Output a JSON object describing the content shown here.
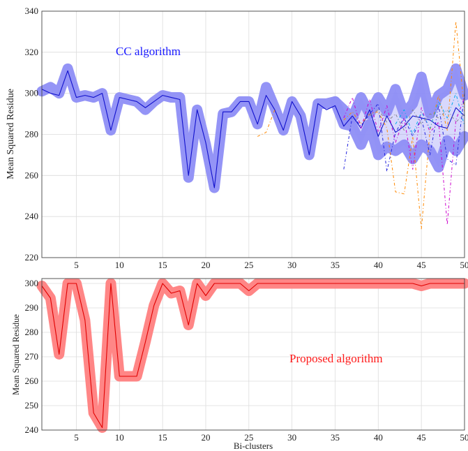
{
  "chart_data": [
    {
      "type": "line",
      "ylabel": "Mean Squared Residue",
      "xlabel": "",
      "xlim": [
        1,
        50
      ],
      "ylim": [
        220,
        340
      ],
      "xticks": [
        5,
        10,
        15,
        20,
        25,
        30,
        35,
        40,
        45,
        50
      ],
      "yticks": [
        220,
        240,
        260,
        280,
        300,
        320,
        340
      ],
      "grid": true,
      "annotation": "CC algorithm",
      "annotation_color": "#1a1aff",
      "band_color": "#8e8ef6",
      "x": [
        1,
        2,
        3,
        4,
        5,
        6,
        7,
        8,
        9,
        10,
        11,
        12,
        13,
        14,
        15,
        16,
        17,
        18,
        19,
        20,
        21,
        22,
        23,
        24,
        25,
        26,
        27,
        28,
        29,
        30,
        31,
        32,
        33,
        34,
        35,
        36,
        37,
        38,
        39,
        40,
        41,
        42,
        43,
        44,
        45,
        46,
        47,
        48,
        49,
        50
      ],
      "envelope_upper": [
        301,
        303,
        300,
        312,
        298,
        299,
        298,
        300,
        282,
        298,
        297,
        296,
        292,
        296,
        299,
        298,
        298,
        259,
        292,
        275,
        254,
        290,
        291,
        296,
        296,
        285,
        303,
        293,
        282,
        296,
        289,
        270,
        295,
        295,
        296,
        292,
        288,
        298,
        290,
        298,
        291,
        302,
        290,
        295,
        308,
        290,
        299,
        302,
        312,
        299
      ],
      "envelope_lower": [
        301,
        303,
        300,
        312,
        298,
        299,
        298,
        300,
        282,
        298,
        297,
        296,
        292,
        296,
        299,
        298,
        298,
        259,
        292,
        275,
        254,
        290,
        291,
        296,
        296,
        285,
        303,
        293,
        282,
        296,
        289,
        270,
        295,
        295,
        296,
        285,
        284,
        275,
        285,
        270,
        274,
        272,
        275,
        268,
        275,
        272,
        264,
        277,
        272,
        279
      ],
      "series": [
        {
          "name": "",
          "color": "#1111cc",
          "dash": "",
          "width": 1.1,
          "values": [
            302,
            300,
            299,
            311,
            298,
            299,
            298,
            300,
            282,
            298,
            297,
            296,
            293,
            296,
            299,
            298,
            297,
            260,
            292,
            276,
            254,
            291,
            291,
            296,
            296,
            285,
            299,
            292,
            282,
            296,
            289,
            270,
            295,
            292,
            294,
            284,
            289,
            283,
            292,
            279,
            289,
            281,
            284,
            289,
            288,
            287,
            284,
            283,
            293,
            289
          ]
        },
        {
          "name": "",
          "color": "#ff8800",
          "dash": "4,3,1,3",
          "width": 1.0,
          "values": [
            null,
            null,
            null,
            null,
            null,
            null,
            null,
            null,
            null,
            null,
            null,
            null,
            null,
            null,
            null,
            null,
            null,
            null,
            null,
            null,
            null,
            null,
            null,
            null,
            null,
            279,
            281,
            292,
            null,
            null,
            null,
            null,
            null,
            null,
            null,
            287,
            291,
            285,
            290,
            291,
            283,
            252,
            251,
            279,
            234,
            282,
            299,
            282,
            335,
            291
          ]
        },
        {
          "name": "",
          "color": "#cc00cc",
          "dash": "4,3,1,3",
          "width": 1.0,
          "values": [
            null,
            null,
            null,
            null,
            null,
            null,
            null,
            null,
            null,
            null,
            null,
            null,
            null,
            null,
            null,
            null,
            null,
            null,
            null,
            null,
            null,
            null,
            null,
            null,
            null,
            null,
            null,
            null,
            null,
            null,
            null,
            null,
            null,
            null,
            null,
            288,
            298,
            283,
            297,
            281,
            294,
            276,
            288,
            263,
            293,
            281,
            286,
            236,
            287,
            298
          ]
        },
        {
          "name": "",
          "color": "#2222dd",
          "dash": "4,3,1,3",
          "width": 1.0,
          "values": [
            null,
            null,
            null,
            null,
            null,
            null,
            null,
            null,
            null,
            null,
            null,
            null,
            null,
            null,
            null,
            null,
            null,
            null,
            null,
            null,
            null,
            null,
            null,
            null,
            null,
            null,
            null,
            null,
            null,
            null,
            null,
            null,
            null,
            null,
            null,
            263,
            289,
            284,
            290,
            295,
            262,
            281,
            288,
            279,
            288,
            270,
            294,
            268,
            265,
            300
          ]
        },
        {
          "name": "",
          "color": "#00aaee",
          "dash": "4,3,1,3",
          "width": 1.0,
          "values": [
            null,
            null,
            null,
            null,
            null,
            null,
            null,
            null,
            null,
            null,
            null,
            null,
            null,
            null,
            null,
            null,
            null,
            null,
            null,
            null,
            null,
            null,
            null,
            null,
            null,
            null,
            null,
            null,
            null,
            null,
            null,
            null,
            null,
            null,
            null,
            null,
            null,
            null,
            null,
            null,
            null,
            285,
            292,
            280,
            291,
            283,
            296,
            288,
            300,
            284
          ]
        },
        {
          "name": "",
          "color": "#888888",
          "dash": "4,3,1,3",
          "width": 1.0,
          "values": [
            null,
            null,
            null,
            null,
            null,
            null,
            null,
            null,
            null,
            null,
            null,
            null,
            null,
            null,
            null,
            null,
            null,
            null,
            null,
            null,
            null,
            null,
            null,
            null,
            null,
            null,
            null,
            null,
            null,
            null,
            null,
            null,
            null,
            null,
            null,
            null,
            null,
            null,
            289,
            292,
            286,
            290,
            282,
            292,
            285,
            290,
            288,
            292,
            286,
            290
          ]
        }
      ]
    },
    {
      "type": "line",
      "ylabel": "Mean Squared Residue",
      "xlabel": "Bi-clusters",
      "xlim": [
        1,
        50
      ],
      "ylim": [
        240,
        302
      ],
      "xticks": [
        5,
        10,
        15,
        20,
        25,
        30,
        35,
        40,
        45,
        50
      ],
      "yticks": [
        240,
        250,
        260,
        270,
        280,
        290,
        300
      ],
      "grid": true,
      "annotation": "Proposed algorithm",
      "annotation_color": "#ff1a1a",
      "band_color": "#ff7f7f",
      "x": [
        1,
        2,
        3,
        4,
        5,
        6,
        7,
        8,
        9,
        10,
        11,
        12,
        13,
        14,
        15,
        16,
        17,
        18,
        19,
        20,
        21,
        22,
        23,
        24,
        25,
        26,
        27,
        28,
        29,
        30,
        31,
        32,
        33,
        34,
        35,
        36,
        37,
        38,
        39,
        40,
        41,
        42,
        43,
        44,
        45,
        46,
        47,
        48,
        49,
        50
      ],
      "series": [
        {
          "name": "",
          "color": "#e00000",
          "dash": "",
          "width": 1.1,
          "values": [
            299,
            294,
            271,
            300,
            300,
            285,
            247,
            241,
            300,
            262,
            262,
            262,
            276,
            291,
            300,
            296,
            297,
            283,
            300,
            295,
            300,
            300,
            300,
            300,
            297,
            300,
            300,
            300,
            300,
            300,
            300,
            300,
            300,
            300,
            300,
            300,
            300,
            300,
            300,
            300,
            300,
            300,
            300,
            300,
            299,
            300,
            300,
            300,
            300,
            300
          ]
        }
      ]
    }
  ]
}
